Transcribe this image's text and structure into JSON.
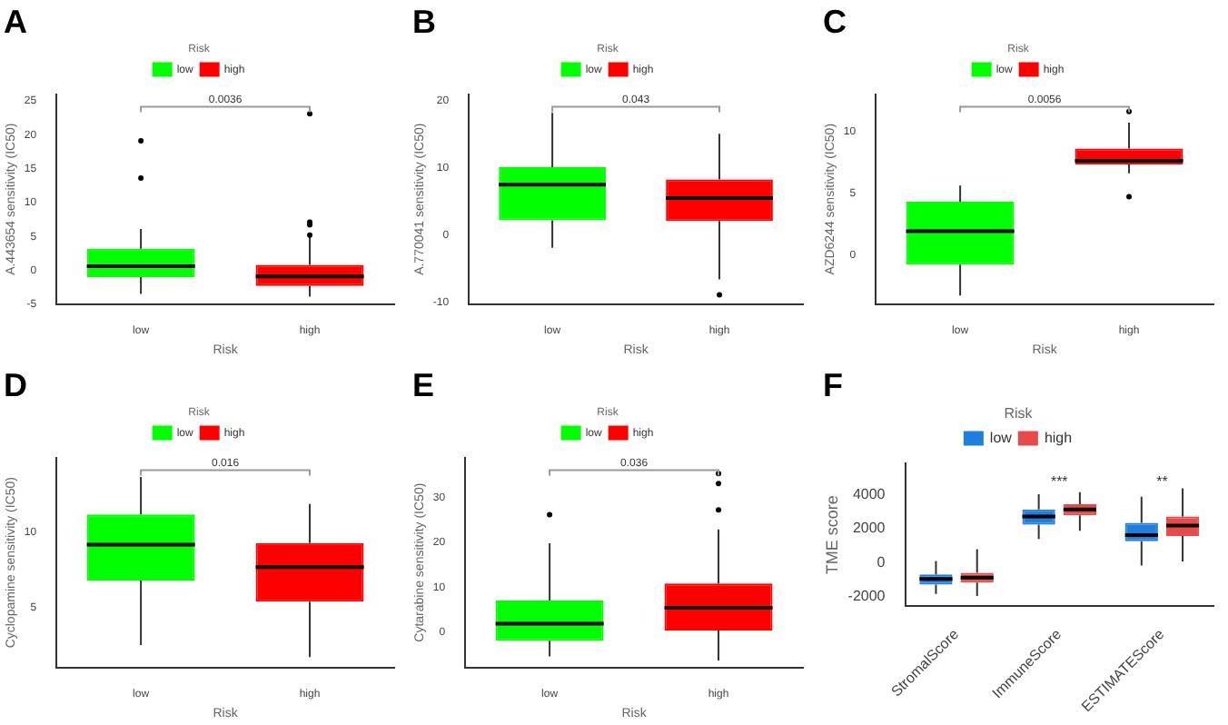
{
  "chart_data": [
    {
      "type": "box",
      "title": "A",
      "xlabel": "Risk",
      "ylabel": "A.443654 sensitivity (IC50)",
      "legend_title": "Risk",
      "legend": "top",
      "grid": false,
      "categories": [
        "low",
        "high"
      ],
      "ylim": [
        -5,
        26
      ],
      "yticks": [
        -5,
        0,
        5,
        10,
        15,
        20,
        25
      ],
      "annotations": [
        "0.0036"
      ],
      "series": [
        {
          "name": "low",
          "color": "#00ff00",
          "boxes": [
            {
              "low": -3.5,
              "q1": -1,
              "median": 0.6,
              "q3": 3.2,
              "high": 6.1,
              "outliers": [
                13.6,
                19.1
              ]
            },
            null
          ]
        },
        {
          "name": "high",
          "color": "#ff0000",
          "boxes": [
            null,
            {
              "low": -3.9,
              "q1": -2.3,
              "median": -0.9,
              "q3": 0.8,
              "high": 4.9,
              "outliers": [
                5.2,
                6.7,
                7.1,
                23.1
              ]
            }
          ]
        }
      ]
    },
    {
      "type": "box",
      "title": "B",
      "xlabel": "Risk",
      "ylabel": "A.770041 sensitivity (IC50)",
      "legend_title": "Risk",
      "legend": "top",
      "grid": false,
      "categories": [
        "low",
        "high"
      ],
      "ylim": [
        -10.3,
        21
      ],
      "yticks": [
        -10,
        0,
        10,
        20
      ],
      "annotations": [
        "0.043"
      ],
      "series": [
        {
          "name": "low",
          "color": "#00ff00",
          "boxes": [
            {
              "low": -1.9,
              "q1": 2.2,
              "median": 7.5,
              "q3": 10.1,
              "high": 18.2
            },
            null
          ]
        },
        {
          "name": "high",
          "color": "#ff0000",
          "boxes": [
            null,
            {
              "low": -6.6,
              "q1": 2.1,
              "median": 5.5,
              "q3": 8.3,
              "high": 15.1,
              "outliers": [
                -8.9
              ]
            }
          ]
        }
      ]
    },
    {
      "type": "box",
      "title": "C",
      "xlabel": "Risk",
      "ylabel": "AZD6244 sensitivity (IC50)",
      "legend_title": "Risk",
      "legend": "top",
      "grid": false,
      "categories": [
        "low",
        "high"
      ],
      "ylim": [
        -4,
        13
      ],
      "yticks": [
        0,
        5,
        10
      ],
      "annotations": [
        "0.0056"
      ],
      "series": [
        {
          "name": "low",
          "color": "#00ff00",
          "boxes": [
            {
              "low": -3.3,
              "q1": -0.8,
              "median": 1.9,
              "q3": 4.3,
              "high": 5.6
            },
            null
          ]
        },
        {
          "name": "high",
          "color": "#ff0000",
          "boxes": [
            null,
            {
              "low": 6.6,
              "q1": 7.3,
              "median": 7.6,
              "q3": 8.6,
              "high": 10.7,
              "outliers": [
                4.7,
                11.6
              ]
            }
          ]
        }
      ]
    },
    {
      "type": "box",
      "title": "D",
      "xlabel": "Risk",
      "ylabel": "Cyclopamine sensitivity (IC50)",
      "legend_title": "Risk",
      "legend": "top",
      "grid": false,
      "categories": [
        "low",
        "high"
      ],
      "ylim": [
        1,
        15
      ],
      "yticks": [
        5,
        10
      ],
      "annotations": [
        "0.016"
      ],
      "series": [
        {
          "name": "low",
          "color": "#00ff00",
          "boxes": [
            {
              "low": 2.5,
              "q1": 6.8,
              "median": 9.2,
              "q3": 11.2,
              "high": 13.7
            },
            null
          ]
        },
        {
          "name": "high",
          "color": "#ff0000",
          "boxes": [
            null,
            {
              "low": 1.7,
              "q1": 5.4,
              "median": 7.7,
              "q3": 9.3,
              "high": 11.9
            }
          ]
        }
      ]
    },
    {
      "type": "box",
      "title": "E",
      "xlabel": "Risk",
      "ylabel": "Cytarabine sensitivity (IC50)",
      "legend_title": "Risk",
      "legend": "top",
      "grid": false,
      "categories": [
        "low",
        "high"
      ],
      "ylim": [
        -8,
        39
      ],
      "yticks": [
        0,
        10,
        20,
        30
      ],
      "annotations": [
        "0.036"
      ],
      "series": [
        {
          "name": "low",
          "color": "#00ff00",
          "boxes": [
            {
              "low": -5.5,
              "q1": -2,
              "median": 1.8,
              "q3": 7,
              "high": 19.8,
              "outliers": [
                26.2
              ]
            },
            null
          ]
        },
        {
          "name": "high",
          "color": "#ff0000",
          "boxes": [
            null,
            {
              "low": -6.4,
              "q1": 0.3,
              "median": 5.4,
              "q3": 10.8,
              "high": 22.9,
              "outliers": [
                27.3,
                33.2,
                35.4
              ]
            }
          ]
        }
      ]
    },
    {
      "type": "box",
      "title": "F",
      "ylabel": "TME score",
      "legend_title": "Risk",
      "legend": "top",
      "grid": false,
      "categories": [
        "StromalScore",
        "ImmuneScore",
        "ESTIMATEScore"
      ],
      "ylim": [
        -2570,
        5850
      ],
      "yticks": [
        -2000,
        0,
        2000,
        4000
      ],
      "annotations": [
        "***",
        "**"
      ],
      "series": [
        {
          "name": "low",
          "color": "#1f7fe0",
          "boxes": [
            {
              "low": -1850,
              "q1": -1300,
              "median": -960,
              "q3": -690,
              "high": 100
            },
            {
              "low": 1400,
              "q1": 2250,
              "median": 2730,
              "q3": 3140,
              "high": 4050
            },
            {
              "low": -170,
              "q1": 1270,
              "median": 1630,
              "q3": 2350,
              "high": 3900
            }
          ]
        },
        {
          "name": "high",
          "color": "#e84a4a",
          "boxes": [
            {
              "low": -1970,
              "q1": -1180,
              "median": -890,
              "q3": -600,
              "high": 790
            },
            {
              "low": 1880,
              "q1": 2800,
              "median": 3140,
              "q3": 3450,
              "high": 4170
            },
            {
              "low": 70,
              "q1": 1570,
              "median": 2190,
              "q3": 2730,
              "high": 4400
            }
          ]
        }
      ]
    }
  ]
}
